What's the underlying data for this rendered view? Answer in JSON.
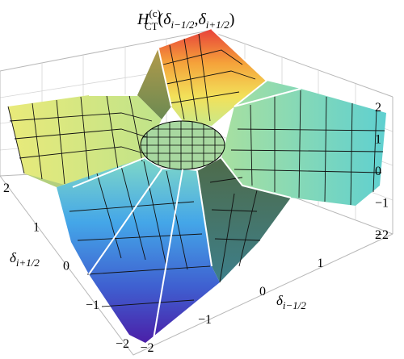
{
  "chart_data": {
    "type": "surface3d",
    "title": {
      "h": "H",
      "sup": "(c)",
      "sub": "CT",
      "lparen": "(",
      "d1": "δ",
      "d1sub": "i−1/2",
      "comma": ",",
      "d2": "δ",
      "d2sub": "i+1/2",
      "rparen": ")"
    },
    "xlabel": {
      "sym": "δ",
      "sub": "i−1/2"
    },
    "ylabel": {
      "sym": "δ",
      "sub": "i+1/2"
    },
    "x_range": [
      -2,
      2
    ],
    "y_range": [
      -2,
      2
    ],
    "z_range": [
      -2,
      2
    ],
    "x_ticks": [
      "−2",
      "−1",
      "0",
      "1",
      "2"
    ],
    "y_ticks": [
      "−2",
      "−1",
      "0",
      "1",
      "2"
    ],
    "z_ticks": [
      "−2",
      "−1",
      "0",
      "1",
      "2"
    ],
    "colormap": [
      "#4b1fa8",
      "#3f5fd0",
      "#44a6e8",
      "#7fd8c8",
      "#c9e88a",
      "#f2e15a",
      "#f5a23a",
      "#e8413a"
    ],
    "box": true,
    "mesh": true
  }
}
